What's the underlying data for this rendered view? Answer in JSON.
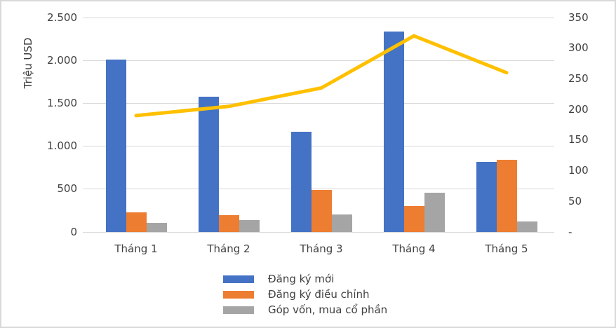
{
  "chart_data": {
    "type": "bar",
    "subtype": "combo-bar-line",
    "title": "",
    "categories": [
      "Tháng 1",
      "Tháng 2",
      "Tháng 3",
      "Tháng 4",
      "Tháng 5"
    ],
    "series": [
      {
        "name": "Đăng ký mới",
        "type": "bar",
        "axis": "left",
        "color": "#4472C4",
        "values": [
          2010,
          1580,
          1170,
          2340,
          820
        ],
        "in_legend": true
      },
      {
        "name": "Đăng ký điều chỉnh",
        "type": "bar",
        "axis": "left",
        "color": "#ED7D31",
        "values": [
          230,
          200,
          490,
          300,
          845
        ],
        "in_legend": true
      },
      {
        "name": "Góp vốn, mua cổ phần",
        "type": "bar",
        "axis": "left",
        "color": "#A5A5A5",
        "values": [
          110,
          140,
          205,
          460,
          120
        ],
        "in_legend": true
      },
      {
        "name": "",
        "type": "line",
        "axis": "right",
        "color": "#FFC000",
        "values": [
          190,
          205,
          235,
          320,
          260
        ],
        "in_legend": false
      }
    ],
    "left_axis": {
      "title": "Triệu USD",
      "min": 0,
      "max": 2500,
      "step": 500,
      "tick_labels": [
        "0",
        "500",
        "1.000",
        "1.500",
        "2.000",
        "2.500"
      ]
    },
    "right_axis": {
      "min": 0,
      "max": 350,
      "step": 50,
      "tick_labels": [
        "-",
        "50",
        "100",
        "150",
        "200",
        "250",
        "300",
        "350"
      ]
    },
    "legend": {
      "position": "bottom"
    },
    "grid": true,
    "colors": {
      "gridline": "#D9D9D9",
      "text": "#404040",
      "border": "#D9D9D9",
      "background": "#FFFFFF"
    }
  }
}
